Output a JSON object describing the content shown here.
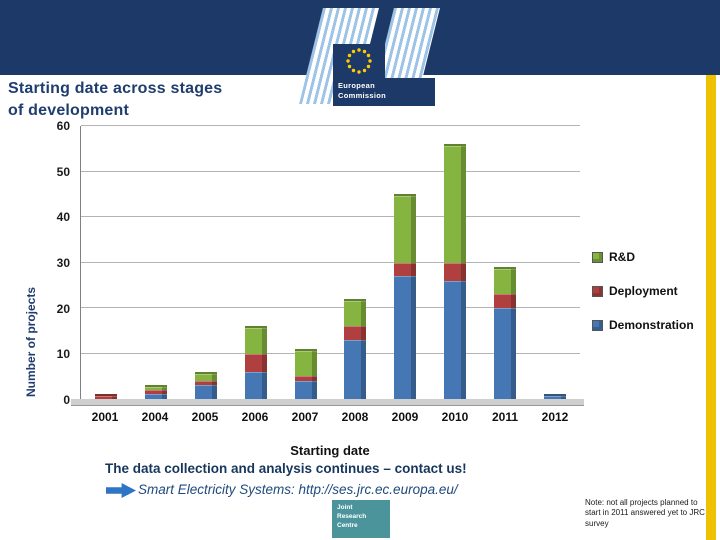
{
  "header": {
    "logo": {
      "line1": "European",
      "line2": "Commission"
    }
  },
  "slide": {
    "title_line1": "Starting date across stages",
    "title_line2": "of development"
  },
  "chart_data": {
    "type": "bar",
    "stacked": true,
    "categories": [
      "2001",
      "2004",
      "2005",
      "2006",
      "2007",
      "2008",
      "2009",
      "2010",
      "2011",
      "2012"
    ],
    "series": [
      {
        "name": "Demonstration",
        "color": "#4477b3",
        "values": [
          0,
          1,
          3,
          6,
          4,
          13,
          27,
          26,
          20,
          1
        ]
      },
      {
        "name": "Deployment",
        "color": "#b04040",
        "values": [
          1,
          1,
          1,
          4,
          1,
          3,
          3,
          4,
          3,
          0
        ]
      },
      {
        "name": "R&D",
        "color": "#86b440",
        "values": [
          0,
          1,
          2,
          6,
          6,
          6,
          15,
          26,
          6,
          0
        ]
      }
    ],
    "legend": [
      "R&D",
      "Deployment",
      "Demonstration"
    ],
    "legend_position": "right",
    "xlabel": "Starting date",
    "ylabel": "Number of projects",
    "ylim": [
      0,
      60
    ],
    "yticks": [
      0,
      10,
      20,
      30,
      40,
      50,
      60
    ],
    "grid": true
  },
  "footer": {
    "message": "The data collection and analysis continues – contact us!",
    "link": "Smart Electricity Systems: http://ses.jrc.ec.europa.eu/",
    "note": "Note: not all projects planned to start in 2011 answered yet to JRC survey",
    "jrc_lines": [
      "Joint",
      "Research",
      "Centre"
    ]
  },
  "colors": {
    "band": "#1d3968",
    "gold_stripe": "#eec200",
    "title_text": "#1f3d6e",
    "arrow": "#2e75c6",
    "jrc_teal": "#4b949c"
  }
}
